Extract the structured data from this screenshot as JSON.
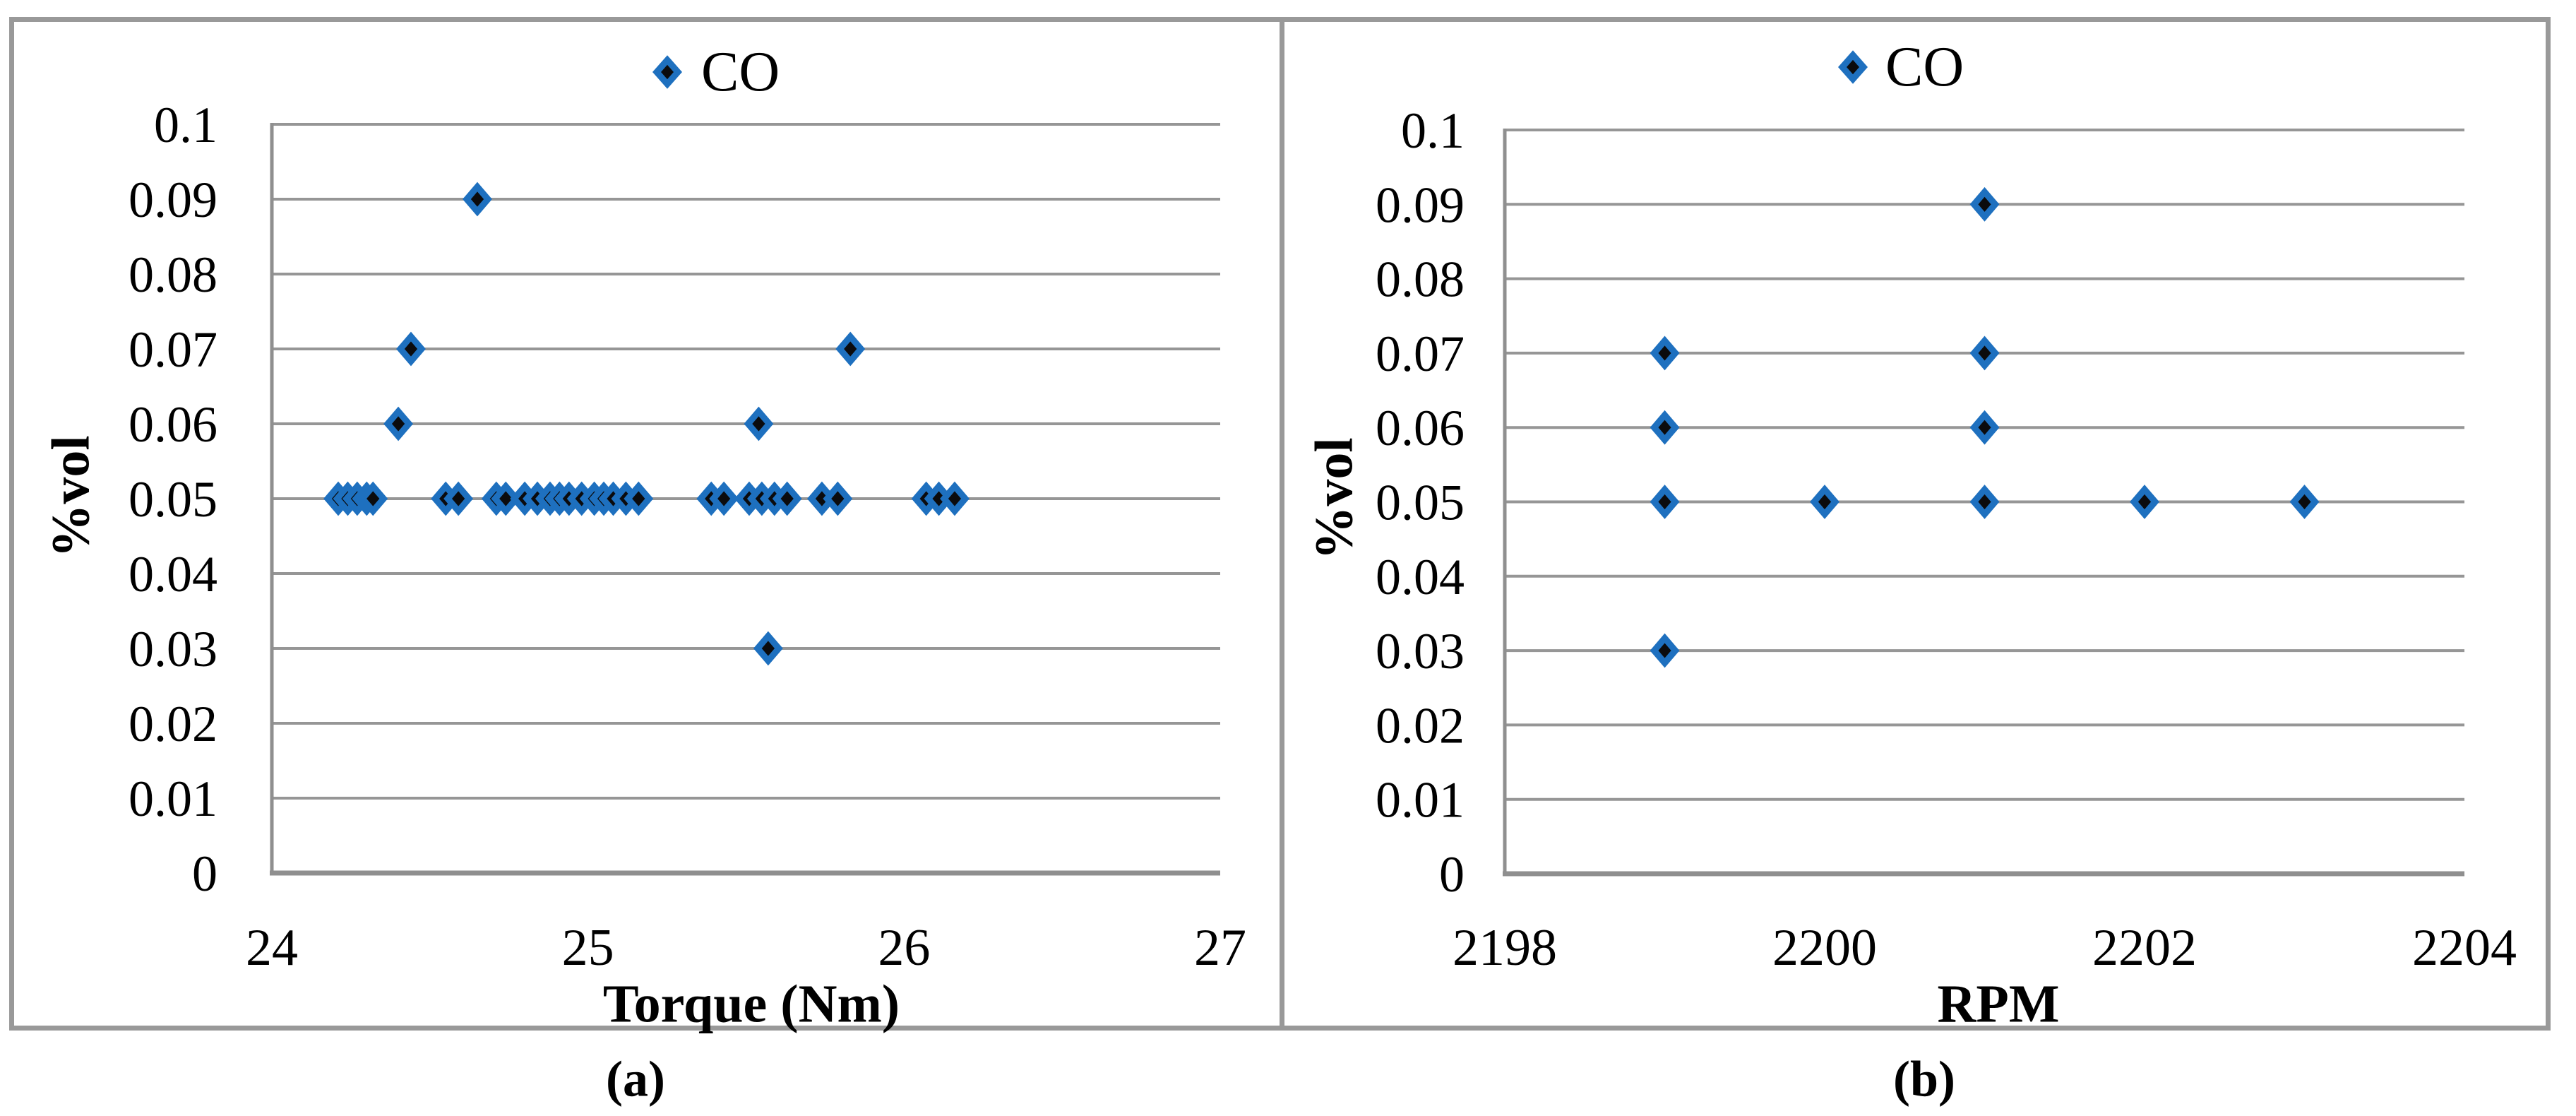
{
  "figure": {
    "background": "#ffffff",
    "frame_color": "#999999",
    "panels": [
      {
        "id": "a",
        "caption": "(a)",
        "legend_label": "CO",
        "legend_marker": "diamond-icon",
        "xlabel": "Torque (Nm)",
        "ylabel": "%vol"
      },
      {
        "id": "b",
        "caption": "(b)",
        "legend_label": "CO",
        "legend_marker": "diamond-icon",
        "xlabel": "RPM",
        "ylabel": "%vol"
      }
    ]
  },
  "colors": {
    "marker_fill": "#0b0b0d",
    "marker_stroke": "#1e70bf",
    "gridline": "#969696",
    "axis": "#8f8f8f",
    "frame": "#999999",
    "text": "#000000"
  },
  "chart_data": [
    {
      "type": "scatter",
      "panel": "a",
      "title": "",
      "legend": [
        "CO"
      ],
      "legend_position": "top-center",
      "xlabel": "Torque (Nm)",
      "ylabel": "%vol",
      "xlim": [
        24,
        27
      ],
      "ylim": [
        0,
        0.1
      ],
      "xticks": [
        24,
        25,
        26,
        27
      ],
      "xtick_labels": [
        "24",
        "25",
        "26",
        "27"
      ],
      "yticks": [
        0,
        0.01,
        0.02,
        0.03,
        0.04,
        0.05,
        0.06,
        0.07,
        0.08,
        0.09,
        0.1
      ],
      "ytick_labels": [
        "0",
        "0.01",
        "0.02",
        "0.03",
        "0.04",
        "0.05",
        "0.06",
        "0.07",
        "0.08",
        "0.09",
        "0.1"
      ],
      "grid": "horizontal",
      "marker": "diamond",
      "series": [
        {
          "name": "CO",
          "points": [
            [
              24.21,
              0.05
            ],
            [
              24.24,
              0.05
            ],
            [
              24.27,
              0.05
            ],
            [
              24.3,
              0.05
            ],
            [
              24.32,
              0.05
            ],
            [
              24.4,
              0.06
            ],
            [
              24.44,
              0.07
            ],
            [
              24.55,
              0.05
            ],
            [
              24.59,
              0.05
            ],
            [
              24.65,
              0.09
            ],
            [
              24.71,
              0.05
            ],
            [
              24.74,
              0.05
            ],
            [
              24.8,
              0.05
            ],
            [
              24.84,
              0.05
            ],
            [
              24.88,
              0.05
            ],
            [
              24.91,
              0.05
            ],
            [
              24.94,
              0.05
            ],
            [
              24.98,
              0.05
            ],
            [
              25.02,
              0.05
            ],
            [
              25.05,
              0.05
            ],
            [
              25.08,
              0.05
            ],
            [
              25.12,
              0.05
            ],
            [
              25.16,
              0.05
            ],
            [
              25.39,
              0.05
            ],
            [
              25.43,
              0.05
            ],
            [
              25.51,
              0.05
            ],
            [
              25.54,
              0.06
            ],
            [
              25.55,
              0.05
            ],
            [
              25.57,
              0.03
            ],
            [
              25.59,
              0.05
            ],
            [
              25.63,
              0.05
            ],
            [
              25.74,
              0.05
            ],
            [
              25.79,
              0.05
            ],
            [
              25.83,
              0.07
            ],
            [
              26.07,
              0.05
            ],
            [
              26.11,
              0.05
            ],
            [
              26.16,
              0.05
            ]
          ]
        }
      ]
    },
    {
      "type": "scatter",
      "panel": "b",
      "title": "",
      "legend": [
        "CO"
      ],
      "legend_position": "top-center",
      "xlabel": "RPM",
      "ylabel": "%vol",
      "xlim": [
        2198,
        2204
      ],
      "ylim": [
        0,
        0.1
      ],
      "xticks": [
        2198,
        2200,
        2202,
        2204
      ],
      "xtick_labels": [
        "2198",
        "2200",
        "2202",
        "2204"
      ],
      "yticks": [
        0,
        0.01,
        0.02,
        0.03,
        0.04,
        0.05,
        0.06,
        0.07,
        0.08,
        0.09,
        0.1
      ],
      "ytick_labels": [
        "0",
        "0.01",
        "0.02",
        "0.03",
        "0.04",
        "0.05",
        "0.06",
        "0.07",
        "0.08",
        "0.09",
        "0.1"
      ],
      "grid": "horizontal",
      "marker": "diamond",
      "series": [
        {
          "name": "CO",
          "points": [
            [
              2199,
              0.03
            ],
            [
              2199,
              0.05
            ],
            [
              2199,
              0.06
            ],
            [
              2199,
              0.07
            ],
            [
              2200,
              0.05
            ],
            [
              2201,
              0.05
            ],
            [
              2201,
              0.06
            ],
            [
              2201,
              0.07
            ],
            [
              2201,
              0.09
            ],
            [
              2202,
              0.05
            ],
            [
              2203,
              0.05
            ]
          ]
        }
      ]
    }
  ]
}
